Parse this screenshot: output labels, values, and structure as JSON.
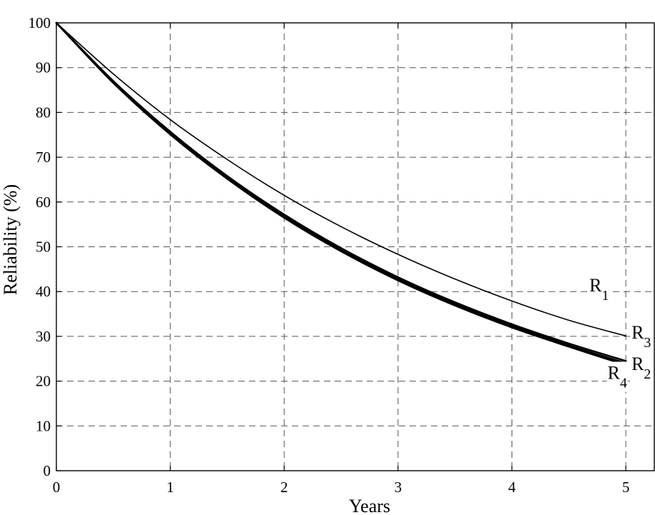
{
  "chart_data": {
    "type": "line",
    "title": "",
    "xlabel": "Years",
    "ylabel": "Reliability (%)",
    "xlim": [
      0,
      5.25
    ],
    "ylim": [
      0,
      100
    ],
    "xticks": [
      0,
      1,
      2,
      3,
      4,
      5
    ],
    "yticks": [
      0,
      10,
      20,
      30,
      40,
      50,
      60,
      70,
      80,
      90,
      100
    ],
    "grid": true,
    "x": [
      0,
      0.5,
      1,
      1.5,
      2,
      2.5,
      3,
      3.5,
      4,
      4.5,
      5
    ],
    "series": [
      {
        "id": "R1",
        "values": [
          100,
          88.6,
          78.4,
          69.5,
          61.5,
          54.5,
          48.3,
          42.8,
          37.9,
          33.6,
          30.1
        ],
        "width": 1.6
      },
      {
        "id": "R2",
        "values": [
          100,
          86.8,
          75.4,
          65.5,
          56.8,
          49.3,
          42.8,
          37.2,
          32.3,
          28.0,
          24.0
        ],
        "width": 2.6
      },
      {
        "id": "R3",
        "values": [
          100,
          87.0,
          75.7,
          65.8,
          57.2,
          49.7,
          43.2,
          37.6,
          32.7,
          28.4,
          24.5
        ],
        "width": 2.6
      },
      {
        "id": "R4",
        "values": [
          100,
          86.6,
          75.1,
          65.2,
          56.5,
          49.0,
          42.5,
          36.9,
          32.0,
          27.7,
          23.6
        ],
        "width": 2.6
      }
    ],
    "annotations": [
      {
        "main": "R",
        "sub": "1",
        "x": 4.68,
        "y": 40
      },
      {
        "main": "R",
        "sub": "3",
        "x": 5.05,
        "y": 29.5
      },
      {
        "main": "R",
        "sub": "4",
        "x": 4.84,
        "y": 20.5
      },
      {
        "main": "R",
        "sub": "2",
        "x": 5.05,
        "y": 22.5
      }
    ]
  }
}
